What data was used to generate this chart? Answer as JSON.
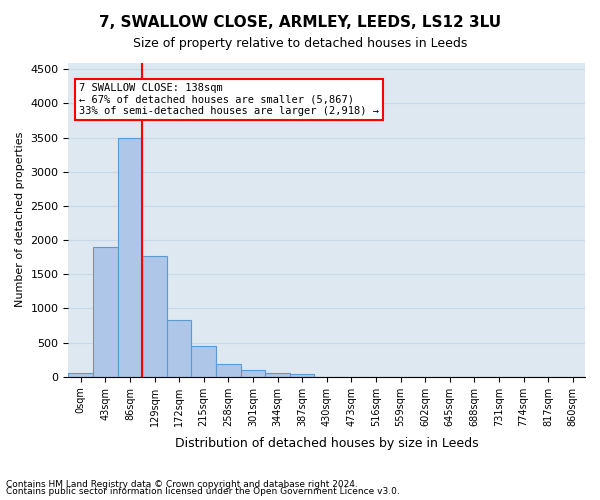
{
  "title": "7, SWALLOW CLOSE, ARMLEY, LEEDS, LS12 3LU",
  "subtitle": "Size of property relative to detached houses in Leeds",
  "xlabel": "Distribution of detached houses by size in Leeds",
  "ylabel": "Number of detached properties",
  "bar_values": [
    50,
    1900,
    3500,
    1770,
    830,
    450,
    185,
    95,
    55,
    35,
    0,
    0,
    0,
    0,
    0,
    0,
    0,
    0,
    0,
    0,
    0
  ],
  "bar_labels": [
    "0sqm",
    "43sqm",
    "86sqm",
    "129sqm",
    "172sqm",
    "215sqm",
    "258sqm",
    "301sqm",
    "344sqm",
    "387sqm",
    "430sqm",
    "473sqm",
    "516sqm",
    "559sqm",
    "602sqm",
    "645sqm",
    "688sqm",
    "731sqm",
    "774sqm",
    "817sqm",
    "860sqm"
  ],
  "bar_color": "#aec6e8",
  "bar_edge_color": "#5b9bd5",
  "grid_color": "#c8d8e8",
  "background_color": "#dde8f0",
  "property_size": 138,
  "red_line_x": 3,
  "annotation_title": "7 SWALLOW CLOSE: 138sqm",
  "annotation_line1": "← 67% of detached houses are smaller (5,867)",
  "annotation_line2": "33% of semi-detached houses are larger (2,918) →",
  "ylim": [
    0,
    4600
  ],
  "yticks": [
    0,
    500,
    1000,
    1500,
    2000,
    2500,
    3000,
    3500,
    4000,
    4500
  ],
  "footer_line1": "Contains HM Land Registry data © Crown copyright and database right 2024.",
  "footer_line2": "Contains public sector information licensed under the Open Government Licence v3.0."
}
